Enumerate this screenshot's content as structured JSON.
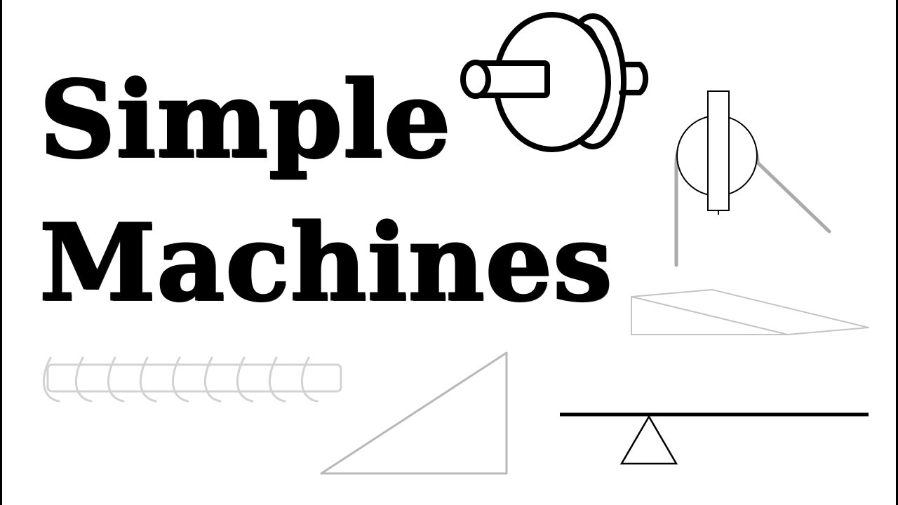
{
  "title": {
    "line1": "Simple",
    "line2": "Machines"
  },
  "machines": [
    {
      "id": "wheel-and-axle",
      "icon": "wheel-and-axle-icon"
    },
    {
      "id": "pulley",
      "icon": "pulley-icon"
    },
    {
      "id": "wedge",
      "icon": "wedge-icon"
    },
    {
      "id": "screw",
      "icon": "screw-icon"
    },
    {
      "id": "inclined-plane",
      "icon": "inclined-plane-icon"
    },
    {
      "id": "lever",
      "icon": "lever-icon"
    }
  ],
  "colors": {
    "ink": "#000000",
    "light_line": "#b8b8b8",
    "rope": "#aaaaaa",
    "background": "#ffffff"
  }
}
